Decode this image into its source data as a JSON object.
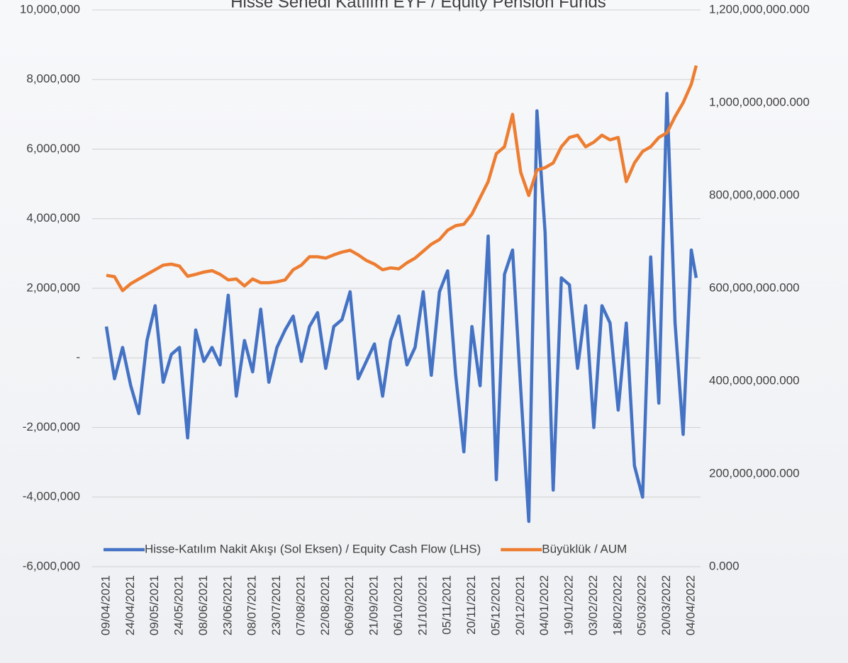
{
  "chart_data": {
    "type": "line",
    "title": "Hisse Senedi Katılım EYF / Equity Pension Funds",
    "x": [
      "09/04/2021",
      "14/04/2021",
      "19/04/2021",
      "24/04/2021",
      "29/04/2021",
      "04/05/2021",
      "09/05/2021",
      "14/05/2021",
      "19/05/2021",
      "24/05/2021",
      "29/05/2021",
      "03/06/2021",
      "08/06/2021",
      "13/06/2021",
      "18/06/2021",
      "23/06/2021",
      "28/06/2021",
      "03/07/2021",
      "08/07/2021",
      "13/07/2021",
      "18/07/2021",
      "23/07/2021",
      "28/07/2021",
      "02/08/2021",
      "07/08/2021",
      "12/08/2021",
      "17/08/2021",
      "22/08/2021",
      "27/08/2021",
      "01/09/2021",
      "06/09/2021",
      "11/09/2021",
      "16/09/2021",
      "21/09/2021",
      "26/09/2021",
      "01/10/2021",
      "06/10/2021",
      "11/10/2021",
      "16/10/2021",
      "21/10/2021",
      "26/10/2021",
      "31/10/2021",
      "05/11/2021",
      "10/11/2021",
      "15/11/2021",
      "20/11/2021",
      "25/11/2021",
      "30/11/2021",
      "05/12/2021",
      "10/12/2021",
      "15/12/2021",
      "20/12/2021",
      "25/12/2021",
      "30/12/2021",
      "04/01/2022",
      "09/01/2022",
      "14/01/2022",
      "19/01/2022",
      "24/01/2022",
      "29/01/2022",
      "03/02/2022",
      "08/02/2022",
      "13/02/2022",
      "18/02/2022",
      "23/02/2022",
      "28/02/2022",
      "05/03/2022",
      "10/03/2022",
      "15/03/2022",
      "20/03/2022",
      "25/03/2022",
      "30/03/2022",
      "04/04/2022",
      "07/04/2022"
    ],
    "xticks": [
      "09/04/2021",
      "24/04/2021",
      "09/05/2021",
      "24/05/2021",
      "08/06/2021",
      "23/06/2021",
      "08/07/2021",
      "23/07/2021",
      "07/08/2021",
      "22/08/2021",
      "06/09/2021",
      "21/09/2021",
      "06/10/2021",
      "21/10/2021",
      "05/11/2021",
      "20/11/2021",
      "05/12/2021",
      "20/12/2021",
      "04/01/2022",
      "19/01/2022",
      "03/02/2022",
      "18/02/2022",
      "05/03/2022",
      "20/03/2022",
      "04/04/2022"
    ],
    "series": [
      {
        "name": "Hisse-Katılım Nakit Akışı (Sol Eksen) / Equity Cash Flow (LHS)",
        "color": "#4472c4",
        "axis": "y",
        "values": [
          900000,
          -600000,
          300000,
          -800000,
          -1600000,
          500000,
          1500000,
          -700000,
          100000,
          300000,
          -2300000,
          800000,
          -100000,
          300000,
          -200000,
          1800000,
          -1100000,
          500000,
          -400000,
          1400000,
          -700000,
          300000,
          800000,
          1200000,
          -100000,
          900000,
          1300000,
          -300000,
          900000,
          1100000,
          1900000,
          -600000,
          -100000,
          400000,
          -1100000,
          500000,
          1200000,
          -200000,
          300000,
          1900000,
          -500000,
          1900000,
          2500000,
          -500000,
          -2700000,
          900000,
          -800000,
          3500000,
          -3500000,
          2400000,
          3100000,
          -900000,
          -4700000,
          7100000,
          3600000,
          -3800000,
          2300000,
          2100000,
          -300000,
          1500000,
          -2000000,
          1500000,
          1000000,
          -1500000,
          1000000,
          -3100000,
          -4000000,
          2900000,
          -1300000,
          7600000,
          1000000,
          -2200000,
          3100000,
          2300000
        ]
      },
      {
        "name": "Büyüklük / AUM",
        "color": "#ed7d31",
        "axis": "y2",
        "values": [
          628000000000,
          625000000000,
          595000000000,
          610000000000,
          620000000000,
          630000000000,
          640000000000,
          650000000000,
          652000000000,
          648000000000,
          626000000000,
          630000000000,
          635000000000,
          638000000000,
          630000000000,
          618000000000,
          620000000000,
          605000000000,
          620000000000,
          612000000000,
          612000000000,
          614000000000,
          618000000000,
          640000000000,
          650000000000,
          668000000000,
          668000000000,
          665000000000,
          672000000000,
          678000000000,
          682000000000,
          672000000000,
          660000000000,
          652000000000,
          640000000000,
          644000000000,
          642000000000,
          655000000000,
          665000000000,
          680000000000,
          695000000000,
          705000000000,
          725000000000,
          735000000000,
          738000000000,
          760000000000,
          795000000000,
          830000000000,
          890000000000,
          905000000000,
          975000000000,
          850000000000,
          800000000000,
          855000000000,
          860000000000,
          870000000000,
          905000000000,
          925000000000,
          930000000000,
          905000000000,
          915000000000,
          930000000000,
          920000000000,
          925000000000,
          830000000000,
          870000000000,
          895000000000,
          905000000000,
          925000000000,
          935000000000,
          970000000000,
          1000000000000,
          1040000000000,
          1080000000000
        ]
      }
    ],
    "ylim": [
      -6000000,
      10000000
    ],
    "yticks": [
      {
        "value": -6000000,
        "label": "-6,000,000"
      },
      {
        "value": -4000000,
        "label": "-4,000,000"
      },
      {
        "value": -2000000,
        "label": "-2,000,000"
      },
      {
        "value": 0,
        "label": "-"
      },
      {
        "value": 2000000,
        "label": "2,000,000"
      },
      {
        "value": 4000000,
        "label": "4,000,000"
      },
      {
        "value": 6000000,
        "label": "6,000,000"
      },
      {
        "value": 8000000,
        "label": "8,000,000"
      },
      {
        "value": 10000000,
        "label": "10,000,000"
      }
    ],
    "y2lim": [
      0,
      1200000000000
    ],
    "y2ticks": [
      {
        "value": 0,
        "label": "0.000"
      },
      {
        "value": 200000000000,
        "label": "200,000,000.000"
      },
      {
        "value": 400000000000,
        "label": "400,000,000.000"
      },
      {
        "value": 600000000000,
        "label": "600,000,000.000"
      },
      {
        "value": 800000000000,
        "label": "800,000,000.000"
      },
      {
        "value": 1000000000000,
        "label": "1,000,000,000.000"
      },
      {
        "value": 1200000000000,
        "label": "1,200,000,000.000"
      }
    ],
    "grid": true,
    "legend": "bottom"
  }
}
